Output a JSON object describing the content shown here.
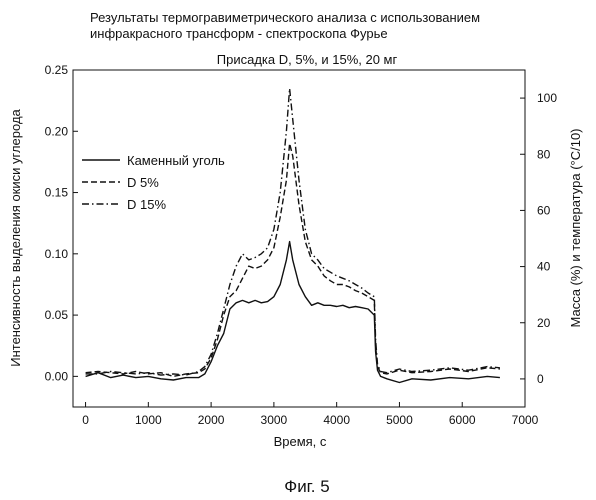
{
  "chart_data": {
    "type": "line",
    "title_line1": "Результаты термогравиметрического анализа с использованием",
    "title_line2": "инфракрасного трансформ - спектроскопа Фурье",
    "subtitle": "Присадка D, 5%, и 15%,  20 мг",
    "xlabel": "Время, с",
    "ylabel_left": "Интенсивность выделения окиси углерода",
    "ylabel_right": "Масса (%) и температура (°C/10)",
    "caption": "Фиг. 5",
    "xlim": [
      -200,
      7000
    ],
    "ylim_left": [
      -0.025,
      0.25
    ],
    "ylim_right": [
      -10,
      110
    ],
    "x_ticks": [
      "0",
      "1000",
      "2000",
      "3000",
      "4000",
      "5000",
      "6000",
      "7000"
    ],
    "y_left_ticks": [
      "0.00",
      "0.05",
      "0.10",
      "0.15",
      "0.20",
      "0.25"
    ],
    "y_right_ticks": [
      "0",
      "20",
      "40",
      "60",
      "80",
      "100"
    ],
    "legend_position": "upper-left",
    "grid": false,
    "series": [
      {
        "name": "Каменный уголь",
        "dash": "solid",
        "points": [
          [
            0,
            0.0
          ],
          [
            200,
            0.003
          ],
          [
            400,
            -0.001
          ],
          [
            600,
            0.001
          ],
          [
            800,
            -0.001
          ],
          [
            1000,
            0.0
          ],
          [
            1200,
            -0.002
          ],
          [
            1400,
            -0.003
          ],
          [
            1600,
            -0.001
          ],
          [
            1800,
            -0.001
          ],
          [
            1900,
            0.002
          ],
          [
            2000,
            0.012
          ],
          [
            2100,
            0.025
          ],
          [
            2200,
            0.035
          ],
          [
            2300,
            0.055
          ],
          [
            2400,
            0.06
          ],
          [
            2500,
            0.062
          ],
          [
            2600,
            0.06
          ],
          [
            2700,
            0.062
          ],
          [
            2800,
            0.06
          ],
          [
            2900,
            0.061
          ],
          [
            3000,
            0.065
          ],
          [
            3100,
            0.075
          ],
          [
            3200,
            0.095
          ],
          [
            3250,
            0.11
          ],
          [
            3300,
            0.095
          ],
          [
            3400,
            0.075
          ],
          [
            3500,
            0.065
          ],
          [
            3600,
            0.058
          ],
          [
            3700,
            0.06
          ],
          [
            3800,
            0.058
          ],
          [
            3900,
            0.058
          ],
          [
            4000,
            0.057
          ],
          [
            4100,
            0.058
          ],
          [
            4200,
            0.056
          ],
          [
            4300,
            0.057
          ],
          [
            4400,
            0.056
          ],
          [
            4500,
            0.055
          ],
          [
            4600,
            0.05
          ],
          [
            4620,
            0.02
          ],
          [
            4650,
            0.005
          ],
          [
            4700,
            0.0
          ],
          [
            4800,
            -0.002
          ],
          [
            5000,
            -0.005
          ],
          [
            5200,
            -0.002
          ],
          [
            5500,
            -0.003
          ],
          [
            5800,
            -0.001
          ],
          [
            6100,
            -0.002
          ],
          [
            6400,
            0.0
          ],
          [
            6600,
            -0.001
          ]
        ]
      },
      {
        "name": "D 5%",
        "dash": "dashed",
        "points": [
          [
            0,
            0.003
          ],
          [
            200,
            0.004
          ],
          [
            400,
            0.003
          ],
          [
            600,
            0.002
          ],
          [
            800,
            0.004
          ],
          [
            1000,
            0.002
          ],
          [
            1200,
            0.003
          ],
          [
            1400,
            0.0
          ],
          [
            1600,
            0.002
          ],
          [
            1800,
            0.003
          ],
          [
            1900,
            0.006
          ],
          [
            2000,
            0.015
          ],
          [
            2100,
            0.03
          ],
          [
            2200,
            0.05
          ],
          [
            2300,
            0.065
          ],
          [
            2400,
            0.07
          ],
          [
            2500,
            0.08
          ],
          [
            2600,
            0.09
          ],
          [
            2700,
            0.088
          ],
          [
            2800,
            0.09
          ],
          [
            2900,
            0.095
          ],
          [
            3000,
            0.105
          ],
          [
            3100,
            0.13
          ],
          [
            3200,
            0.16
          ],
          [
            3250,
            0.19
          ],
          [
            3300,
            0.18
          ],
          [
            3400,
            0.14
          ],
          [
            3500,
            0.11
          ],
          [
            3600,
            0.095
          ],
          [
            3700,
            0.09
          ],
          [
            3800,
            0.082
          ],
          [
            3900,
            0.078
          ],
          [
            4000,
            0.075
          ],
          [
            4100,
            0.075
          ],
          [
            4200,
            0.073
          ],
          [
            4300,
            0.07
          ],
          [
            4400,
            0.068
          ],
          [
            4500,
            0.065
          ],
          [
            4600,
            0.062
          ],
          [
            4620,
            0.025
          ],
          [
            4650,
            0.008
          ],
          [
            4700,
            0.003
          ],
          [
            4800,
            0.002
          ],
          [
            5000,
            0.005
          ],
          [
            5200,
            0.003
          ],
          [
            5500,
            0.004
          ],
          [
            5800,
            0.006
          ],
          [
            6100,
            0.004
          ],
          [
            6400,
            0.007
          ],
          [
            6600,
            0.006
          ]
        ]
      },
      {
        "name": "D 15%",
        "dash": "dashdot",
        "points": [
          [
            0,
            0.002
          ],
          [
            200,
            0.002
          ],
          [
            400,
            0.004
          ],
          [
            600,
            0.003
          ],
          [
            800,
            0.002
          ],
          [
            1000,
            0.003
          ],
          [
            1200,
            0.001
          ],
          [
            1400,
            0.002
          ],
          [
            1600,
            0.001
          ],
          [
            1800,
            0.004
          ],
          [
            1900,
            0.008
          ],
          [
            2000,
            0.018
          ],
          [
            2100,
            0.035
          ],
          [
            2200,
            0.055
          ],
          [
            2300,
            0.075
          ],
          [
            2400,
            0.09
          ],
          [
            2500,
            0.1
          ],
          [
            2600,
            0.095
          ],
          [
            2700,
            0.097
          ],
          [
            2800,
            0.1
          ],
          [
            2900,
            0.105
          ],
          [
            3000,
            0.12
          ],
          [
            3100,
            0.15
          ],
          [
            3200,
            0.2
          ],
          [
            3250,
            0.235
          ],
          [
            3300,
            0.21
          ],
          [
            3400,
            0.16
          ],
          [
            3500,
            0.12
          ],
          [
            3600,
            0.1
          ],
          [
            3700,
            0.095
          ],
          [
            3800,
            0.088
          ],
          [
            3900,
            0.085
          ],
          [
            4000,
            0.082
          ],
          [
            4100,
            0.08
          ],
          [
            4200,
            0.078
          ],
          [
            4300,
            0.075
          ],
          [
            4400,
            0.072
          ],
          [
            4500,
            0.068
          ],
          [
            4600,
            0.065
          ],
          [
            4620,
            0.03
          ],
          [
            4650,
            0.01
          ],
          [
            4700,
            0.004
          ],
          [
            4800,
            0.003
          ],
          [
            5000,
            0.006
          ],
          [
            5200,
            0.004
          ],
          [
            5500,
            0.005
          ],
          [
            5800,
            0.007
          ],
          [
            6100,
            0.005
          ],
          [
            6400,
            0.008
          ],
          [
            6600,
            0.007
          ]
        ]
      }
    ]
  }
}
